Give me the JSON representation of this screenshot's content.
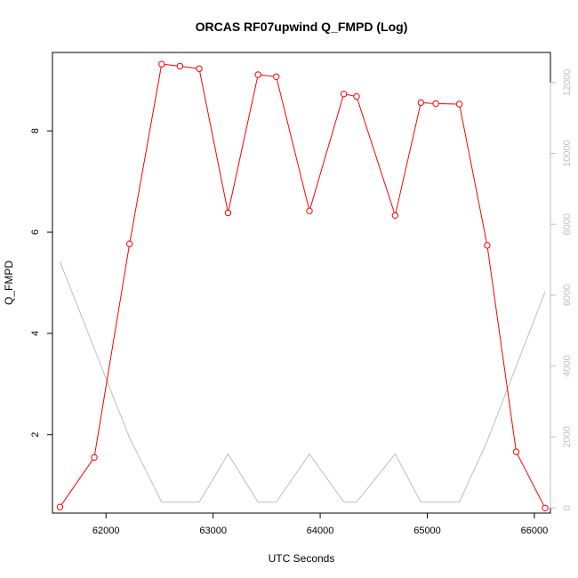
{
  "chart_data": {
    "type": "line",
    "title": "ORCAS RF07upwind Q_FMPD (Log)",
    "xlabel": "UTC Seconds",
    "ylabel": "Q_FMPD",
    "xlim": [
      61500,
      66150
    ],
    "ylim": [
      0.45,
      9.55
    ],
    "y2lim": [
      -150,
      12850
    ],
    "x_ticks": [
      62000,
      63000,
      64000,
      65000,
      66000
    ],
    "y_ticks": [
      2,
      4,
      6,
      8
    ],
    "y2_ticks": [
      0,
      2000,
      4000,
      6000,
      8000,
      10000,
      12000
    ],
    "grid": false,
    "legend": "none",
    "series": [
      {
        "axis": "left",
        "color": "#ff0000",
        "marker": "open-circle",
        "x": [
          61570,
          61890,
          62220,
          62520,
          62690,
          62870,
          63140,
          63420,
          63590,
          63900,
          64220,
          64340,
          64700,
          64940,
          65080,
          65300,
          65560,
          65830,
          66100
        ],
        "y": [
          0.57,
          1.55,
          5.77,
          9.32,
          9.28,
          9.23,
          6.38,
          9.11,
          9.07,
          6.42,
          8.73,
          8.68,
          6.33,
          8.56,
          8.54,
          8.53,
          5.74,
          1.66,
          0.55
        ]
      },
      {
        "axis": "right",
        "color": "#bebebe",
        "marker": "none",
        "x": [
          61570,
          62220,
          62520,
          62870,
          63140,
          63420,
          63590,
          63900,
          64220,
          64340,
          64700,
          64940,
          65300,
          65560,
          66100
        ],
        "y": [
          6950,
          1970,
          160,
          160,
          1520,
          160,
          160,
          1520,
          160,
          160,
          1520,
          160,
          160,
          1880,
          6100
        ]
      }
    ]
  }
}
